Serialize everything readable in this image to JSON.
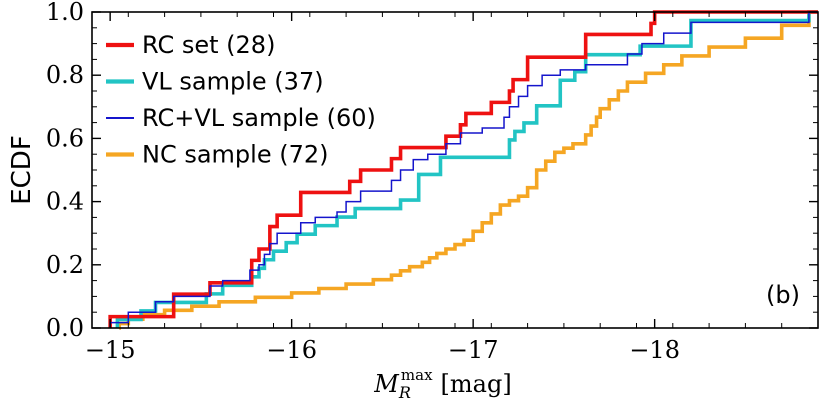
{
  "chart_data": {
    "type": "line",
    "step": true,
    "xlabel_main": "M",
    "xlabel_sub": "R",
    "xlabel_sup": "max",
    "xlabel_unit": "[mag]",
    "ylabel": "ECDF",
    "xlim": [
      -14.9,
      -18.9
    ],
    "ylim": [
      0.0,
      1.0
    ],
    "x_inverted": true,
    "xticks": [
      -15,
      -16,
      -17,
      -18
    ],
    "xtick_labels": [
      "−15",
      "−16",
      "−17",
      "−18"
    ],
    "yticks": [
      0.0,
      0.2,
      0.4,
      0.6,
      0.8,
      1.0
    ],
    "ytick_labels": [
      "0.0",
      "0.2",
      "0.4",
      "0.6",
      "0.8",
      "1.0"
    ],
    "legend_position": "top-left",
    "annotation": "(b)",
    "series": [
      {
        "name": "RC set (28)",
        "color": "#ee1111",
        "x": [
          -15.0,
          -15.35,
          -15.55,
          -15.78,
          -15.82,
          -15.88,
          -15.92,
          -16.05,
          -16.32,
          -16.38,
          -16.55,
          -16.6,
          -16.85,
          -16.93,
          -16.96,
          -17.1,
          -17.2,
          -17.22,
          -17.3,
          -17.62,
          -17.98,
          -18.0
        ],
        "y": [
          0.036,
          0.107,
          0.143,
          0.214,
          0.25,
          0.321,
          0.357,
          0.429,
          0.464,
          0.5,
          0.536,
          0.571,
          0.607,
          0.643,
          0.679,
          0.714,
          0.75,
          0.786,
          0.857,
          0.929,
          0.964,
          1.0
        ]
      },
      {
        "name": "VL sample (37)",
        "color": "#22c4c4",
        "x": [
          -15.04,
          -15.17,
          -15.25,
          -15.53,
          -15.62,
          -15.78,
          -15.82,
          -15.85,
          -15.9,
          -15.97,
          -16.03,
          -16.13,
          -16.25,
          -16.35,
          -16.6,
          -16.7,
          -16.82,
          -17.2,
          -17.23,
          -17.28,
          -17.35,
          -17.48,
          -17.56,
          -17.62,
          -17.92,
          -18.2,
          -18.85
        ],
        "y": [
          0.027,
          0.054,
          0.081,
          0.108,
          0.135,
          0.162,
          0.189,
          0.216,
          0.243,
          0.27,
          0.297,
          0.324,
          0.351,
          0.378,
          0.405,
          0.486,
          0.54,
          0.595,
          0.622,
          0.649,
          0.703,
          0.784,
          0.811,
          0.865,
          0.892,
          0.973,
          1.0
        ]
      },
      {
        "name": "RC+VL sample (60)",
        "color": "#1515cc",
        "x": [
          -15.0,
          -15.1,
          -15.25,
          -15.35,
          -15.55,
          -15.62,
          -15.77,
          -15.82,
          -15.85,
          -15.88,
          -15.92,
          -16.05,
          -16.13,
          -16.25,
          -16.3,
          -16.38,
          -16.55,
          -16.6,
          -16.67,
          -16.75,
          -16.85,
          -16.93,
          -17.05,
          -17.17,
          -17.2,
          -17.25,
          -17.3,
          -17.38,
          -17.48,
          -17.62,
          -17.85,
          -17.93,
          -18.05,
          -18.2,
          -18.85
        ],
        "y": [
          0.017,
          0.05,
          0.083,
          0.1,
          0.133,
          0.15,
          0.183,
          0.2,
          0.233,
          0.267,
          0.3,
          0.333,
          0.35,
          0.367,
          0.4,
          0.433,
          0.467,
          0.5,
          0.533,
          0.55,
          0.583,
          0.617,
          0.633,
          0.667,
          0.7,
          0.733,
          0.767,
          0.8,
          0.817,
          0.833,
          0.867,
          0.9,
          0.933,
          0.967,
          1.0
        ]
      },
      {
        "name": "NC sample (72)",
        "color": "#f5a623",
        "x": [
          -15.05,
          -15.1,
          -15.18,
          -15.3,
          -15.45,
          -15.6,
          -15.8,
          -16.0,
          -16.15,
          -16.3,
          -16.45,
          -16.55,
          -16.6,
          -16.65,
          -16.72,
          -16.76,
          -16.8,
          -16.85,
          -16.9,
          -16.95,
          -17.0,
          -17.05,
          -17.1,
          -17.15,
          -17.2,
          -17.25,
          -17.3,
          -17.35,
          -17.4,
          -17.45,
          -17.5,
          -17.55,
          -17.62,
          -17.65,
          -17.68,
          -17.7,
          -17.75,
          -17.8,
          -17.85,
          -17.95,
          -18.05,
          -18.15,
          -18.3,
          -18.5,
          -18.7,
          -18.85
        ],
        "y": [
          0.014,
          0.028,
          0.042,
          0.056,
          0.069,
          0.083,
          0.097,
          0.111,
          0.125,
          0.139,
          0.153,
          0.167,
          0.181,
          0.194,
          0.208,
          0.222,
          0.236,
          0.25,
          0.264,
          0.278,
          0.306,
          0.333,
          0.361,
          0.389,
          0.403,
          0.417,
          0.444,
          0.5,
          0.528,
          0.556,
          0.569,
          0.583,
          0.611,
          0.639,
          0.667,
          0.694,
          0.722,
          0.75,
          0.778,
          0.806,
          0.833,
          0.861,
          0.889,
          0.917,
          0.958,
          1.0
        ]
      }
    ]
  }
}
